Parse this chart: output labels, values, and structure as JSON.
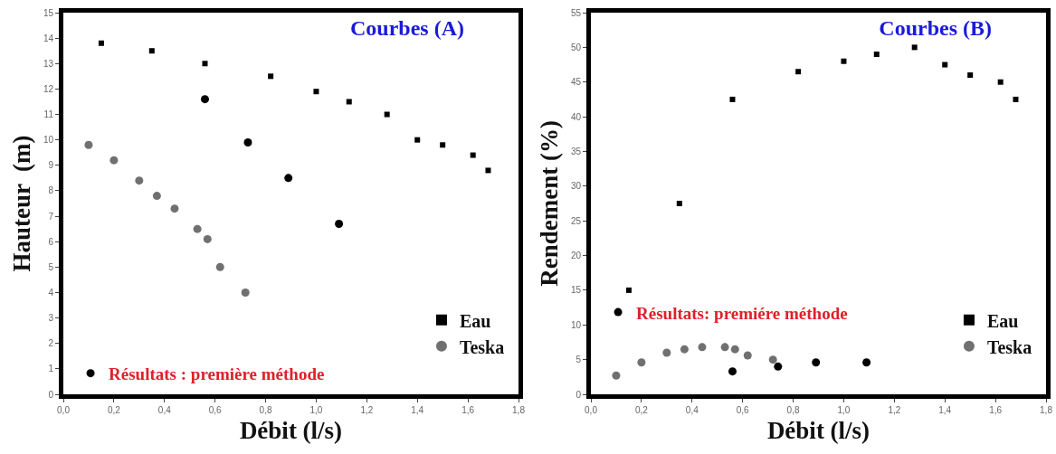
{
  "chart_data": [
    {
      "type": "scatter",
      "title": "Courbes (A)",
      "xlabel": "Débit (l/s)",
      "ylabel": "Hauteur  (m)",
      "legend": "bottom right",
      "xlim": [
        0,
        1.8
      ],
      "xticks": [
        {
          "value": 0,
          "label": "0,0"
        },
        {
          "value": 0.2,
          "label": "0,2"
        },
        {
          "value": 0.4,
          "label": "0,4"
        },
        {
          "value": 0.6,
          "label": "0,6"
        },
        {
          "value": 0.8,
          "label": "0,8"
        },
        {
          "value": 1.0,
          "label": "1,0"
        },
        {
          "value": 1.2,
          "label": "1,2"
        },
        {
          "value": 1.4,
          "label": "1,4"
        },
        {
          "value": 1.6,
          "label": "1,6"
        },
        {
          "value": 1.8,
          "label": "1,8"
        }
      ],
      "ylim": [
        0,
        15
      ],
      "yticks": [
        0,
        1,
        2,
        3,
        4,
        5,
        6,
        7,
        8,
        9,
        10,
        11,
        12,
        13,
        14,
        15
      ],
      "series": [
        {
          "name": "Eau",
          "color": "#000000",
          "marker": "square",
          "x": [
            0.15,
            0.35,
            0.56,
            0.82,
            1.0,
            1.13,
            1.28,
            1.4,
            1.5,
            1.62,
            1.68
          ],
          "values": [
            13.8,
            13.5,
            13.0,
            12.5,
            11.9,
            11.5,
            11.0,
            10.0,
            9.8,
            9.4,
            8.8
          ]
        },
        {
          "name": "Teska",
          "color": "#707070",
          "marker": "circle",
          "x": [
            0.1,
            0.2,
            0.3,
            0.37,
            0.44,
            0.53,
            0.57,
            0.62,
            0.72
          ],
          "values": [
            9.8,
            9.2,
            8.4,
            7.8,
            7.3,
            6.5,
            6.1,
            5.0,
            4.0
          ]
        },
        {
          "name": "Résultats : première méthode",
          "color": "#000000",
          "marker": "circle",
          "x": [
            0.56,
            0.73,
            0.89,
            1.09
          ],
          "values": [
            11.6,
            9.9,
            8.5,
            6.7
          ]
        }
      ]
    },
    {
      "type": "scatter",
      "title": "Courbes (B)",
      "xlabel": "Débit (l/s)",
      "ylabel": "Rendement (%)",
      "legend": "bottom right",
      "xlim": [
        0,
        1.8
      ],
      "xticks": [
        {
          "value": 0,
          "label": "0,0"
        },
        {
          "value": 0.2,
          "label": "0,2"
        },
        {
          "value": 0.4,
          "label": "0,4"
        },
        {
          "value": 0.6,
          "label": "0,6"
        },
        {
          "value": 0.8,
          "label": "0,8"
        },
        {
          "value": 1.0,
          "label": "1,0"
        },
        {
          "value": 1.2,
          "label": "1,2"
        },
        {
          "value": 1.4,
          "label": "1,4"
        },
        {
          "value": 1.6,
          "label": "1,6"
        },
        {
          "value": 1.8,
          "label": "1,8"
        }
      ],
      "ylim": [
        0,
        55
      ],
      "yticks": [
        0,
        5,
        10,
        15,
        20,
        25,
        30,
        35,
        40,
        45,
        50,
        55
      ],
      "series": [
        {
          "name": "Eau",
          "color": "#000000",
          "marker": "square",
          "x": [
            0.15,
            0.35,
            0.56,
            0.82,
            1.0,
            1.13,
            1.28,
            1.4,
            1.5,
            1.62,
            1.68
          ],
          "values": [
            15,
            27.5,
            42.5,
            46.5,
            48,
            49,
            50,
            47.5,
            46,
            45,
            42.5
          ]
        },
        {
          "name": "Teska",
          "color": "#707070",
          "marker": "circle",
          "x": [
            0.1,
            0.2,
            0.3,
            0.37,
            0.44,
            0.53,
            0.57,
            0.62,
            0.72
          ],
          "values": [
            2.7,
            4.6,
            6.0,
            6.5,
            6.8,
            6.8,
            6.5,
            5.6,
            5.0
          ]
        },
        {
          "name": "Résultats: premiére méthode",
          "color": "#000000",
          "marker": "circle",
          "x": [
            0.56,
            0.74,
            0.89,
            1.09
          ],
          "values": [
            3.3,
            4.0,
            4.6,
            4.6
          ]
        }
      ]
    }
  ]
}
